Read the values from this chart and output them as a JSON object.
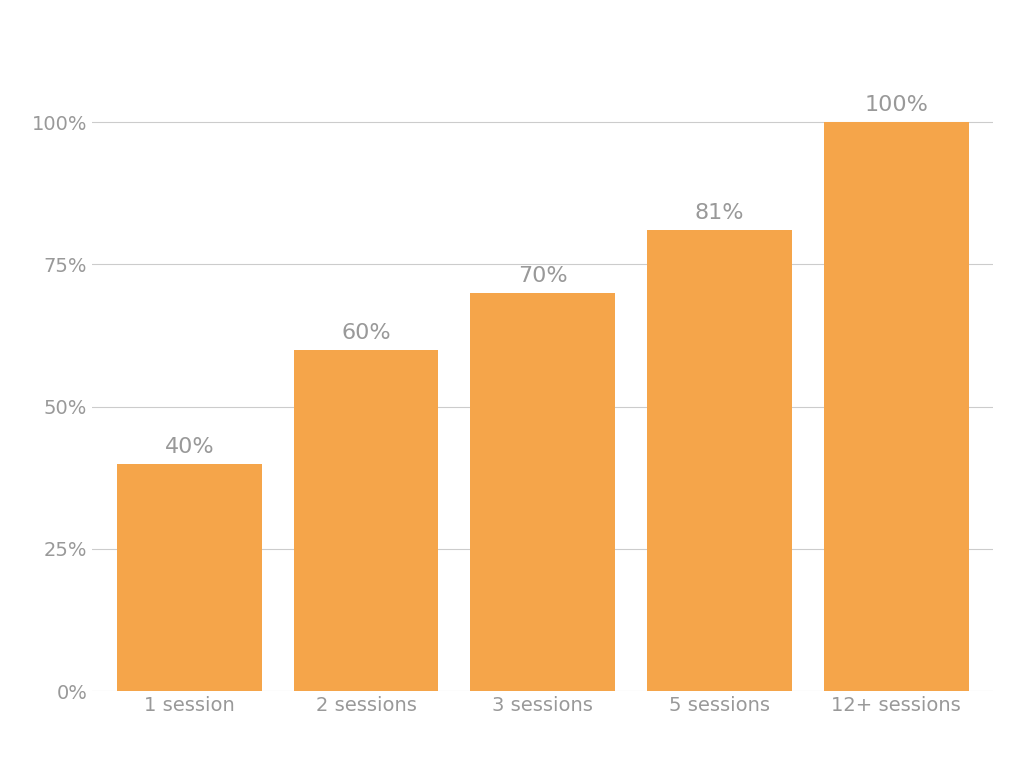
{
  "categories": [
    "1 session",
    "2 sessions",
    "3 sessions",
    "5 sessions",
    "12+ sessions"
  ],
  "values": [
    40,
    60,
    70,
    81,
    100
  ],
  "labels": [
    "40%",
    "60%",
    "70%",
    "81%",
    "100%"
  ],
  "bar_color": "#F5A54A",
  "background_color": "#ffffff",
  "yticks": [
    0,
    25,
    50,
    75,
    100
  ],
  "ytick_labels": [
    "0%",
    "25%",
    "50%",
    "75%",
    "100%"
  ],
  "ylim": [
    0,
    112
  ],
  "grid_color": "#cccccc",
  "label_color": "#999999",
  "tick_color": "#999999",
  "bar_label_fontsize": 16,
  "axis_label_fontsize": 14,
  "bar_width": 0.82
}
